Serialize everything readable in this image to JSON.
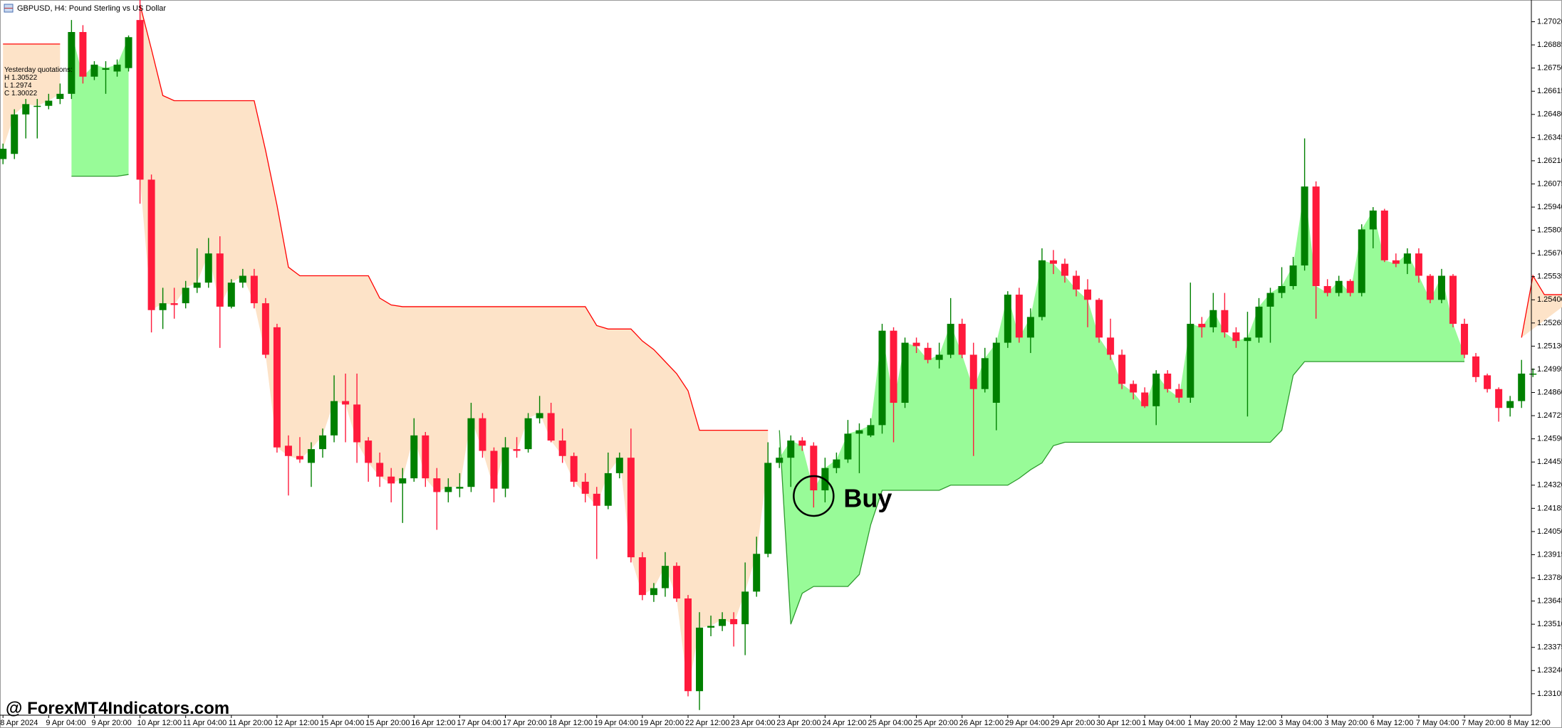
{
  "chart_data": {
    "type": "candlestick",
    "title": "GBPUSD, H4: Pound Sterling vs US Dollar",
    "info_lines": [
      "Yesterday quotations:",
      "H 1.30522",
      "L 1.2974",
      "C 1.30022"
    ],
    "annotation": "Buy",
    "watermark": "@ ForexMT4Indicators.com",
    "up_color": "#008000",
    "down_color": "#ff1a3c",
    "ylim": [
      1.2298,
      1.2713
    ],
    "yticks": [
      {
        "value": 1.2702,
        "label": "1.27020"
      },
      1.26885,
      {
        "value": 1.2675,
        "label": "1.26750"
      },
      1.26615,
      {
        "value": 1.2648,
        "label": "1.26480"
      },
      1.26345,
      {
        "value": 1.2621,
        "label": "1.26210"
      },
      1.26075,
      {
        "value": 1.2594,
        "label": "1.25940"
      },
      1.25805,
      {
        "value": 1.2567,
        "label": "1.25670"
      },
      1.25535,
      {
        "value": 1.254,
        "label": "1.25400"
      },
      1.25265,
      {
        "value": 1.2513,
        "label": "1.25130"
      },
      1.24995,
      {
        "value": 1.2486,
        "label": "1.24860"
      },
      1.24725,
      {
        "value": 1.2459,
        "label": "1.24590"
      },
      1.24455,
      {
        "value": 1.2432,
        "label": "1.24320"
      },
      1.24185,
      {
        "value": 1.2405,
        "label": "1.24050"
      },
      1.23915,
      {
        "value": 1.2378,
        "label": "1.23780"
      },
      1.23645,
      {
        "value": 1.2351,
        "label": "1.23510"
      },
      1.23375,
      {
        "value": 1.2324,
        "label": "1.23240"
      },
      1.23105
    ],
    "categories": [
      "8 Apr 2024",
      null,
      null,
      null,
      "9 Apr 04:00",
      null,
      null,
      null,
      "9 Apr 20:00",
      null,
      null,
      null,
      "10 Apr 12:00",
      null,
      null,
      null,
      "11 Apr 04:00",
      null,
      null,
      null,
      "11 Apr 20:00",
      null,
      null,
      null,
      "12 Apr 12:00",
      null,
      null,
      null,
      "15 Apr 04:00",
      null,
      null,
      null,
      "15 Apr 20:00",
      null,
      null,
      null,
      "16 Apr 12:00",
      null,
      null,
      null,
      "17 Apr 04:00",
      null,
      null,
      null,
      "17 Apr 20:00",
      null,
      null,
      null,
      "18 Apr 12:00",
      null,
      null,
      null,
      "19 Apr 04:00",
      null,
      null,
      null,
      "19 Apr 20:00",
      null,
      null,
      null,
      "22 Apr 12:00",
      null,
      null,
      null,
      "23 Apr 04:00",
      null,
      null,
      null,
      "23 Apr 20:00",
      null,
      null,
      null,
      "24 Apr 12:00",
      null,
      null,
      null,
      "25 Apr 04:00",
      null,
      null,
      null,
      "25 Apr 20:00",
      null,
      null,
      null,
      "26 Apr 12:00",
      null,
      null,
      null,
      "29 Apr 04:00",
      null,
      null,
      null,
      "29 Apr 20:00",
      null,
      null,
      null,
      "30 Apr 12:00",
      null,
      null,
      null,
      "1 May 04:00",
      null,
      null,
      null,
      "1 May 20:00",
      null,
      null,
      null,
      "2 May 12:00",
      null,
      null,
      null,
      "3 May 04:00",
      null,
      null,
      null,
      "3 May 20:00",
      null,
      null,
      null,
      "6 May 12:00",
      null,
      null,
      null,
      "7 May 04:00",
      null,
      null,
      null,
      "7 May 20:00",
      null,
      null,
      null,
      "8 May 12:00",
      null,
      null
    ],
    "open": [
      1.2622,
      1.2625,
      1.2648,
      1.2653,
      1.2653,
      1.2657,
      1.266,
      1.2696,
      1.267,
      1.2674,
      1.2673,
      1.2675,
      1.2703,
      1.261,
      1.2534,
      1.2538,
      1.2538,
      1.2547,
      1.255,
      1.2567,
      1.2536,
      1.255,
      1.2554,
      1.2538,
      1.2524,
      1.2455,
      1.2449,
      1.2445,
      1.2453,
      1.2461,
      1.2481,
      1.2479,
      1.2458,
      1.2445,
      1.2437,
      1.2433,
      1.2436,
      1.2461,
      1.2436,
      1.2428,
      1.243,
      1.2431,
      1.2471,
      1.2452,
      1.243,
      1.2453,
      1.2453,
      1.2471,
      1.2474,
      1.2458,
      1.2449,
      1.2434,
      1.2427,
      1.242,
      1.2439,
      1.2448,
      1.239,
      1.2368,
      1.2372,
      1.2385,
      1.2366,
      1.2312,
      1.2349,
      1.235,
      1.2354,
      1.2351,
      1.237,
      1.2392,
      1.2445,
      1.2448,
      1.2458,
      1.2455,
      1.2429,
      1.2442,
      1.2447,
      1.2462,
      1.2461,
      1.2467,
      1.2522,
      1.248,
      1.2515,
      1.2512,
      1.2505,
      1.2508,
      1.2526,
      1.2508,
      1.2488,
      1.248,
      1.2515,
      1.2543,
      1.2518,
      1.253,
      1.2563,
      1.2561,
      1.2554,
      1.2546,
      1.254,
      1.2518,
      1.2508,
      1.2491,
      1.2486,
      1.2478,
      1.2497,
      1.2488,
      1.2483,
      1.2526,
      1.2524,
      1.2534,
      1.2521,
      1.2516,
      1.2518,
      1.2536,
      1.2544,
      1.2548,
      1.256,
      1.2606,
      1.2548,
      1.2544,
      1.2551,
      1.2544,
      1.2581,
      1.2592,
      1.2563,
      1.2561,
      1.2567,
      1.2554,
      1.254,
      1.2554,
      1.2526,
      1.2507,
      1.2496,
      1.2488,
      1.2477,
      1.2481,
      1.2497
    ],
    "high": [
      1.2631,
      1.2651,
      1.2657,
      1.2657,
      1.266,
      1.2666,
      1.2703,
      1.27,
      1.2679,
      1.2679,
      1.268,
      1.2694,
      1.2715,
      1.2613,
      1.2547,
      1.2547,
      1.2551,
      1.257,
      1.2576,
      1.2577,
      1.2552,
      1.2558,
      1.2558,
      1.2541,
      1.2526,
      1.2461,
      1.246,
      1.2457,
      1.2465,
      1.2496,
      1.2497,
      1.2497,
      1.246,
      1.2451,
      1.2442,
      1.2442,
      1.2471,
      1.2463,
      1.2442,
      1.2436,
      1.2439,
      1.248,
      1.2474,
      1.2454,
      1.246,
      1.246,
      1.2474,
      1.2484,
      1.248,
      1.2465,
      1.2451,
      1.2439,
      1.2431,
      1.2451,
      1.2451,
      1.2465,
      1.2393,
      1.2375,
      1.2393,
      1.2387,
      1.2368,
      1.2358,
      1.2356,
      1.2358,
      1.2358,
      1.2387,
      1.2402,
      1.2457,
      1.2454,
      1.2461,
      1.246,
      1.2457,
      1.2448,
      1.2451,
      1.247,
      1.2468,
      1.2471,
      1.2526,
      1.2524,
      1.2518,
      1.2518,
      1.2515,
      1.2515,
      1.2541,
      1.2529,
      1.2515,
      1.2512,
      1.2518,
      1.2545,
      1.2547,
      1.2535,
      1.257,
      1.2569,
      1.2564,
      1.2557,
      1.2552,
      1.2541,
      1.2529,
      1.2511,
      1.2493,
      1.2489,
      1.2499,
      1.2499,
      1.2491,
      1.255,
      1.253,
      1.2544,
      1.2544,
      1.2524,
      1.2533,
      1.2541,
      1.2547,
      1.2559,
      1.2565,
      1.2634,
      1.2609,
      1.2552,
      1.2554,
      1.2552,
      1.2584,
      1.2594,
      1.2593,
      1.2567,
      1.257,
      1.257,
      1.2555,
      1.2558,
      1.2555,
      1.2529,
      1.2509,
      1.2497,
      1.2489,
      1.2484,
      1.2505,
      1.25
    ],
    "low": [
      1.2619,
      1.2622,
      1.2634,
      1.2634,
      1.2651,
      1.2654,
      1.2657,
      1.2666,
      1.2668,
      1.266,
      1.267,
      1.2673,
      1.2596,
      1.2521,
      1.2523,
      1.2529,
      1.2535,
      1.2544,
      1.2547,
      1.2512,
      1.2535,
      1.2547,
      1.2535,
      1.2506,
      1.2451,
      1.2426,
      1.2445,
      1.2431,
      1.2448,
      1.2457,
      1.2457,
      1.2445,
      1.2434,
      1.2431,
      1.2422,
      1.241,
      1.2434,
      1.2431,
      1.2406,
      1.2422,
      1.2425,
      1.2428,
      1.2448,
      1.2422,
      1.2425,
      1.2448,
      1.2451,
      1.2468,
      1.2457,
      1.2445,
      1.2431,
      1.2422,
      1.2389,
      1.2418,
      1.2436,
      1.2387,
      1.2365,
      1.2364,
      1.2367,
      1.2364,
      1.2309,
      1.2301,
      1.2344,
      1.2347,
      1.2338,
      1.2333,
      1.2367,
      1.239,
      1.2442,
      1.2431,
      1.2452,
      1.2419,
      1.2422,
      1.2439,
      1.2445,
      1.2439,
      1.246,
      1.2462,
      1.2457,
      1.2477,
      1.2509,
      1.2503,
      1.25,
      1.2506,
      1.2506,
      1.2449,
      1.2486,
      1.2464,
      1.2512,
      1.2515,
      1.2509,
      1.2528,
      1.2555,
      1.255,
      1.2542,
      1.2524,
      1.2515,
      1.2505,
      1.2488,
      1.2482,
      1.2477,
      1.2467,
      1.2486,
      1.248,
      1.248,
      1.2518,
      1.2521,
      1.2518,
      1.2512,
      1.2472,
      1.2515,
      1.2515,
      1.2541,
      1.2546,
      1.2557,
      1.2529,
      1.2542,
      1.2542,
      1.2542,
      1.2542,
      1.257,
      1.2562,
      1.2559,
      1.2555,
      1.255,
      1.2538,
      1.2538,
      1.2524,
      1.2506,
      1.2492,
      1.2486,
      1.2469,
      1.2472,
      1.2477,
      1.2495
    ],
    "close": [
      1.2628,
      1.2648,
      1.2654,
      1.2653,
      1.2656,
      1.266,
      1.2696,
      1.267,
      1.2677,
      1.2675,
      1.2677,
      1.2693,
      1.261,
      1.2534,
      1.2538,
      1.2537,
      1.2547,
      1.255,
      1.2567,
      1.2536,
      1.255,
      1.2554,
      1.2538,
      1.2508,
      1.2454,
      1.2449,
      1.2447,
      1.2453,
      1.2461,
      1.2481,
      1.2479,
      1.2457,
      1.2445,
      1.2437,
      1.2433,
      1.2436,
      1.2461,
      1.2436,
      1.2428,
      1.2431,
      1.2431,
      1.2471,
      1.2452,
      1.243,
      1.2454,
      1.2452,
      1.2471,
      1.2474,
      1.2458,
      1.2449,
      1.2434,
      1.2427,
      1.242,
      1.2439,
      1.2448,
      1.239,
      1.2368,
      1.2372,
      1.2385,
      1.2366,
      1.2312,
      1.2349,
      1.235,
      1.2354,
      1.2351,
      1.237,
      1.2392,
      1.2445,
      1.2448,
      1.2458,
      1.2455,
      1.2429,
      1.2442,
      1.2447,
      1.2462,
      1.2464,
      1.2467,
      1.2522,
      1.248,
      1.2515,
      1.2513,
      1.2505,
      1.2508,
      1.2526,
      1.2508,
      1.2488,
      1.2506,
      1.2515,
      1.2543,
      1.2518,
      1.253,
      1.2563,
      1.2561,
      1.2554,
      1.2546,
      1.254,
      1.2518,
      1.2508,
      1.2491,
      1.2486,
      1.2478,
      1.2497,
      1.2488,
      1.2483,
      1.2526,
      1.2524,
      1.2534,
      1.2521,
      1.2516,
      1.2518,
      1.2536,
      1.2544,
      1.2548,
      1.256,
      1.2606,
      1.2548,
      1.2544,
      1.2551,
      1.2544,
      1.2581,
      1.2592,
      1.2563,
      1.2561,
      1.2567,
      1.2554,
      1.254,
      1.2554,
      1.2526,
      1.2508,
      1.2495,
      1.2488,
      1.2477,
      1.2481,
      1.2497,
      1.2497
    ],
    "resistance": {
      "color": "#ff0000",
      "fill": "#fde3c8",
      "values": [
        1.2689,
        1.2689,
        1.2689,
        1.2689,
        1.2689,
        1.2689,
        null,
        null,
        null,
        null,
        null,
        null,
        1.2712,
        1.2686,
        1.2659,
        1.2656,
        1.2656,
        1.2656,
        1.2656,
        1.2656,
        1.2656,
        1.2656,
        1.2656,
        1.2627,
        1.2595,
        1.2559,
        1.2554,
        1.2554,
        1.2554,
        1.2554,
        1.2554,
        1.2554,
        1.2554,
        1.2541,
        1.2537,
        1.2536,
        1.2536,
        1.2536,
        1.2536,
        1.2536,
        1.2536,
        1.2536,
        1.2536,
        1.2536,
        1.2536,
        1.2536,
        1.2536,
        1.2536,
        1.2536,
        1.2536,
        1.2536,
        1.2536,
        1.2525,
        1.2523,
        1.2523,
        1.2523,
        1.2516,
        1.2511,
        1.2504,
        1.2497,
        1.2487,
        1.2464,
        1.2464,
        1.2464,
        1.2464,
        1.2464,
        1.2464,
        1.2464,
        null,
        null,
        null,
        null,
        null,
        null,
        null,
        null,
        null,
        null,
        null,
        null,
        null,
        null,
        null,
        null,
        null,
        null,
        null,
        null,
        null,
        null,
        null,
        null,
        null,
        null,
        null,
        null,
        null,
        null,
        null,
        null,
        null,
        null,
        null,
        null,
        null,
        null,
        null,
        null,
        null,
        null,
        null,
        null,
        null,
        null,
        null,
        null,
        null,
        null,
        null,
        null,
        null,
        null,
        null,
        null,
        null,
        null,
        null,
        null,
        null,
        null,
        null,
        null,
        null,
        1.2518,
        1.2554,
        1.2543,
        1.2543,
        1.2543,
        1.2543
      ]
    },
    "support": {
      "color": "#2e9a2e",
      "fill": "#98fb98",
      "values": [
        null,
        null,
        null,
        null,
        null,
        null,
        1.2612,
        1.2612,
        1.2612,
        1.2612,
        1.2612,
        1.2613,
        null,
        null,
        null,
        null,
        null,
        null,
        null,
        null,
        null,
        null,
        null,
        null,
        null,
        null,
        null,
        null,
        null,
        null,
        null,
        null,
        null,
        null,
        null,
        null,
        null,
        null,
        null,
        null,
        null,
        null,
        null,
        null,
        null,
        null,
        null,
        null,
        null,
        null,
        null,
        null,
        null,
        null,
        null,
        null,
        null,
        null,
        null,
        null,
        null,
        null,
        null,
        null,
        null,
        null,
        null,
        null,
        1.2464,
        1.2351,
        1.2369,
        1.2373,
        1.2373,
        1.2373,
        1.2373,
        1.238,
        1.2409,
        1.2429,
        1.2429,
        1.2429,
        1.2429,
        1.2429,
        1.2429,
        1.2432,
        1.2432,
        1.2432,
        1.2432,
        1.2432,
        1.2432,
        1.2436,
        1.2441,
        1.2445,
        1.2455,
        1.2457,
        1.2457,
        1.2457,
        1.2457,
        1.2457,
        1.2457,
        1.2457,
        1.2457,
        1.2457,
        1.2457,
        1.2457,
        1.2457,
        1.2457,
        1.2457,
        1.2457,
        1.2457,
        1.2457,
        1.2457,
        1.2457,
        1.2464,
        1.2496,
        1.2504,
        1.2504,
        1.2504,
        1.2504,
        1.2504,
        1.2504,
        1.2504,
        1.2504,
        1.2504,
        1.2504,
        1.2504,
        1.2504,
        1.2504,
        1.2504,
        1.2504,
        null,
        null,
        null,
        null,
        null,
        null
      ]
    }
  }
}
